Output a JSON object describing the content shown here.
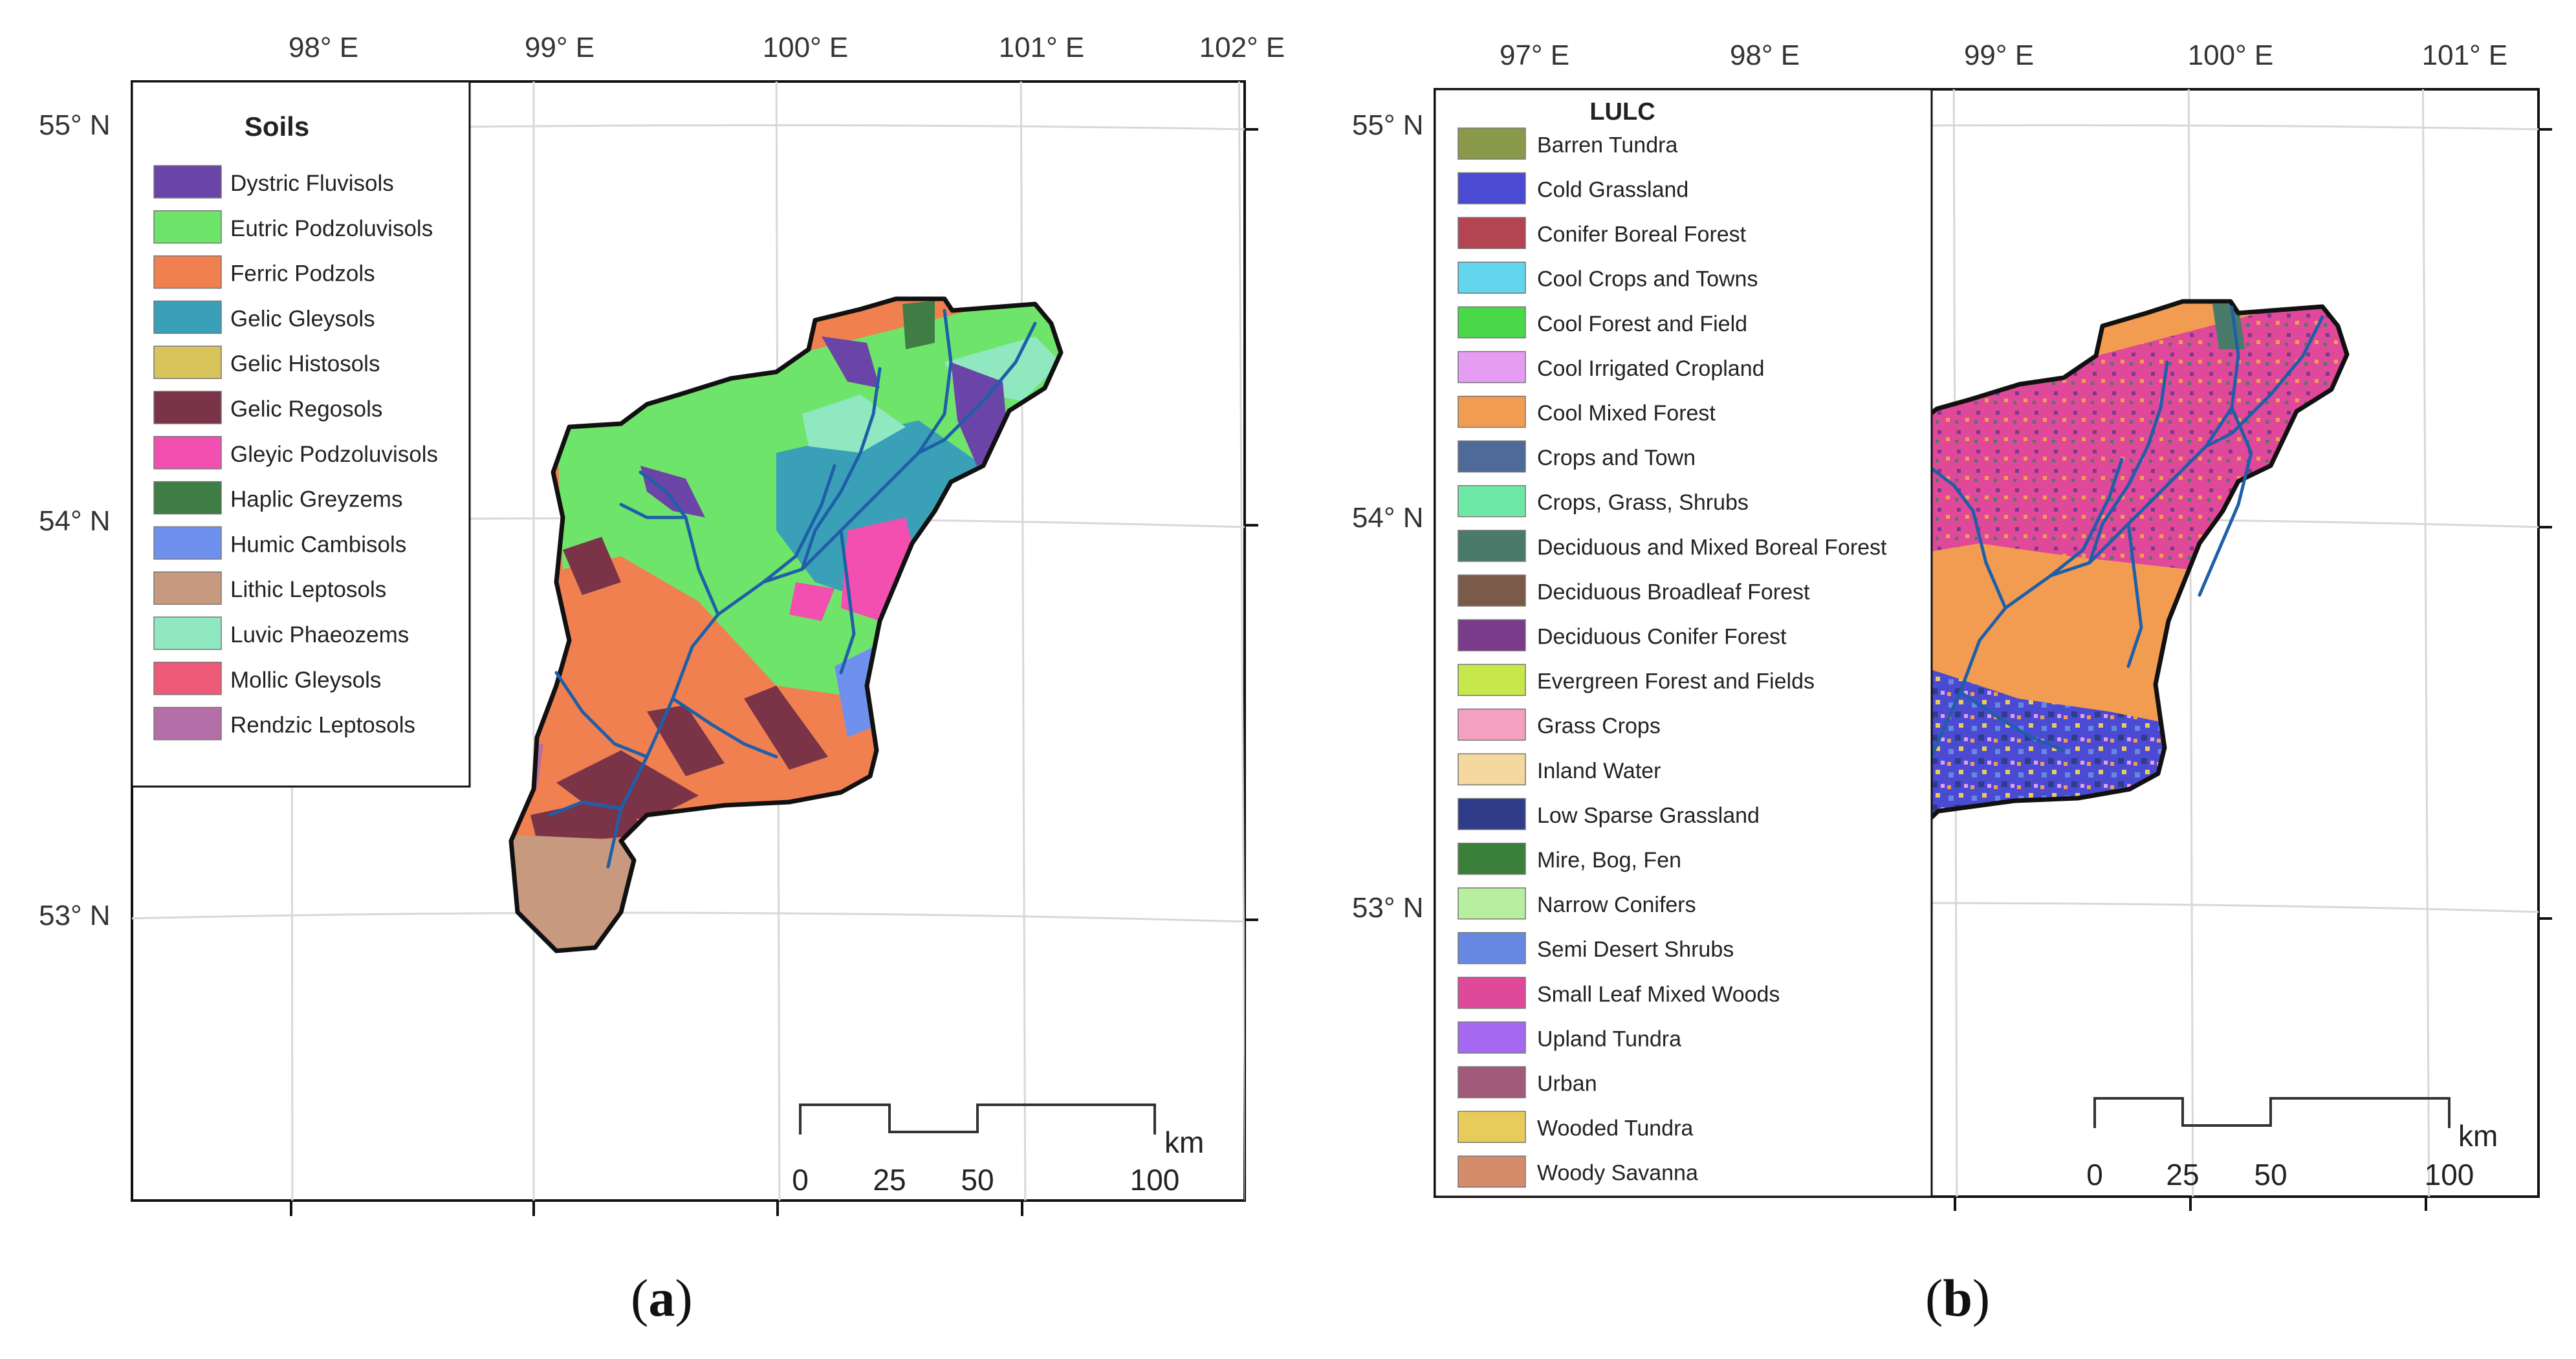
{
  "panel_a": {
    "caption_letter": "a",
    "legend_title": "Soils",
    "legend_items": [
      {
        "label": "Dystric Fluvisols",
        "color": "#6b44a8"
      },
      {
        "label": "Eutric Podzoluvisols",
        "color": "#6fe46a"
      },
      {
        "label": "Ferric Podzols",
        "color": "#f08050"
      },
      {
        "label": "Gelic Gleysols",
        "color": "#3aa0b8"
      },
      {
        "label": "Gelic Histosols",
        "color": "#d9c45c"
      },
      {
        "label": "Gelic Regosols",
        "color": "#7a3347"
      },
      {
        "label": "Gleyic Podzoluvisols",
        "color": "#f24fb0"
      },
      {
        "label": "Haplic Greyzems",
        "color": "#3f7d45"
      },
      {
        "label": "Humic Cambisols",
        "color": "#7090ee"
      },
      {
        "label": "Lithic Leptosols",
        "color": "#c79a80"
      },
      {
        "label": "Luvic Phaeozems",
        "color": "#90e8c0"
      },
      {
        "label": "Mollic Gleysols",
        "color": "#ee5a78"
      },
      {
        "label": "Rendzic Leptosols",
        "color": "#b46ea8"
      }
    ],
    "lon_labels": [
      "98° E",
      "99° E",
      "100° E",
      "101° E",
      "102° E"
    ],
    "lat_labels": [
      "55° N",
      "54° N",
      "53° N"
    ],
    "scale_labels": [
      "0",
      "25",
      "50",
      "100"
    ],
    "scale_unit": "km"
  },
  "panel_b": {
    "caption_letter": "b",
    "legend_title": "LULC",
    "legend_items": [
      {
        "label": "Barren Tundra",
        "color": "#8a9a4a"
      },
      {
        "label": "Cold Grassland",
        "color": "#4a4ad2"
      },
      {
        "label": "Conifer Boreal Forest",
        "color": "#b54453"
      },
      {
        "label": "Cool Crops and Towns",
        "color": "#62d6ec"
      },
      {
        "label": "Cool Forest and Field",
        "color": "#48d848"
      },
      {
        "label": "Cool Irrigated Cropland",
        "color": "#e59cf2"
      },
      {
        "label": "Cool Mixed Forest",
        "color": "#f29c52"
      },
      {
        "label": "Crops and Town",
        "color": "#4e6a98"
      },
      {
        "label": "Crops, Grass, Shrubs",
        "color": "#6ee8a6"
      },
      {
        "label": "Deciduous and Mixed Boreal Forest",
        "color": "#4a7a6a"
      },
      {
        "label": "Deciduous Broadleaf Forest",
        "color": "#7a5a48"
      },
      {
        "label": "Deciduous Conifer Forest",
        "color": "#7a3c8a"
      },
      {
        "label": "Evergreen Forest and Fields",
        "color": "#c6e84a"
      },
      {
        "label": "Grass Crops",
        "color": "#f4a0c0"
      },
      {
        "label": "Inland Water",
        "color": "#f4d8a0"
      },
      {
        "label": "Low Sparse Grassland",
        "color": "#2e3c8a"
      },
      {
        "label": "Mire, Bog, Fen",
        "color": "#3a803a"
      },
      {
        "label": "Narrow Conifers",
        "color": "#b8eea0"
      },
      {
        "label": "Semi Desert Shrubs",
        "color": "#6688e0"
      },
      {
        "label": "Small Leaf Mixed Woods",
        "color": "#e0489a"
      },
      {
        "label": "Upland Tundra",
        "color": "#a668f0"
      },
      {
        "label": "Urban",
        "color": "#a25a7a"
      },
      {
        "label": "Wooded Tundra",
        "color": "#e8cc5a"
      },
      {
        "label": "Woody Savanna",
        "color": "#d48c6a"
      }
    ],
    "lon_labels": [
      "97° E",
      "98° E",
      "99° E",
      "100° E",
      "101° E"
    ],
    "lat_labels": [
      "55° N",
      "54° N",
      "53° N"
    ],
    "scale_labels": [
      "0",
      "25",
      "50",
      "100"
    ],
    "scale_unit": "km"
  },
  "river_color": "#1f5fa8"
}
